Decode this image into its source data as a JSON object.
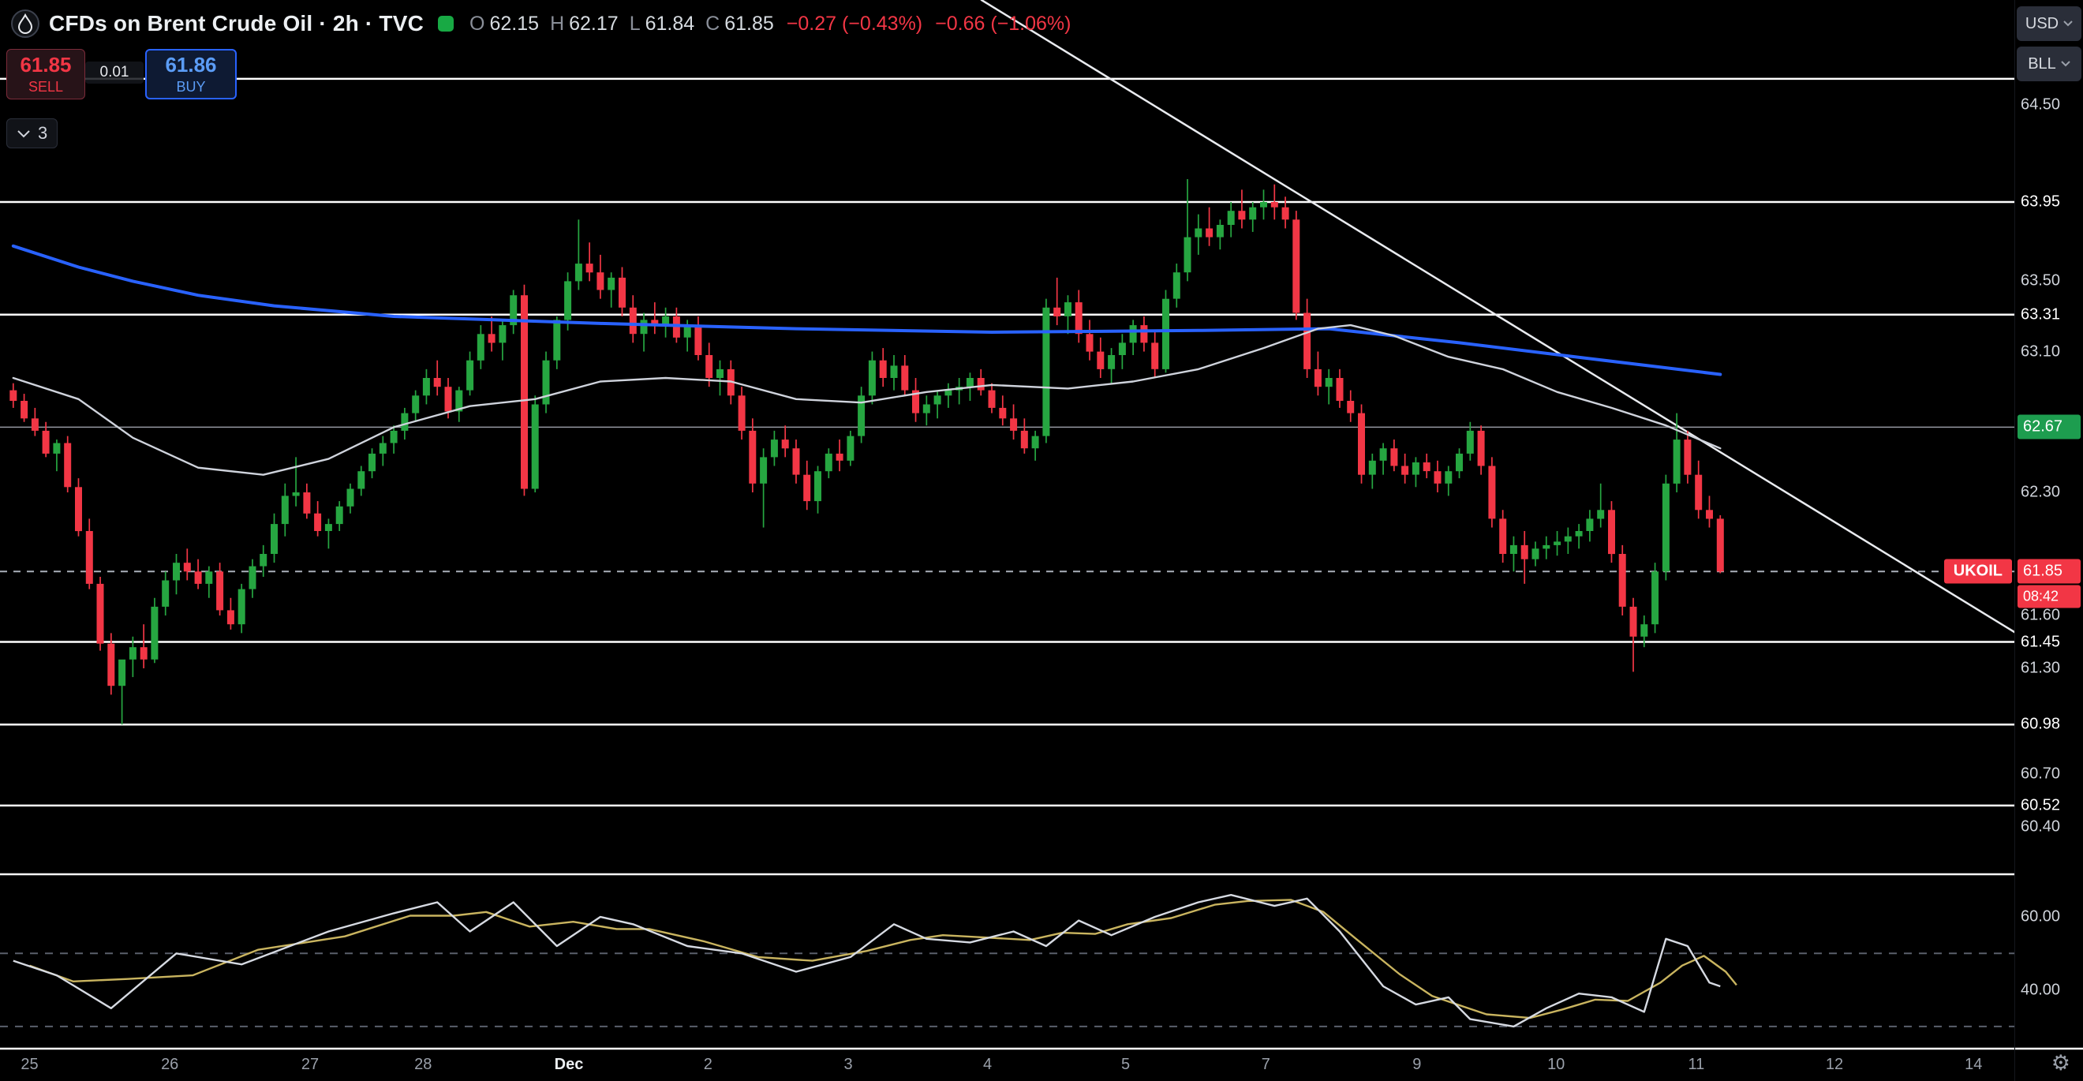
{
  "icons": {
    "gear": "⚙"
  },
  "legend": {
    "title": "CFDs on Brent Crude Oil · 2h · TVC",
    "ohlc": {
      "o_label": "O",
      "o": "62.15",
      "h_label": "H",
      "h": "62.17",
      "l_label": "L",
      "l": "61.84",
      "c_label": "C",
      "c": "61.85",
      "change": "−0.27 (−0.43%)",
      "change2": "−0.66 (−1.06%)"
    }
  },
  "order_panel": {
    "sell_price": "61.85",
    "sell_label": "SELL",
    "spread": "0.01",
    "buy_price": "61.86",
    "buy_label": "BUY",
    "indicator_count": "3"
  },
  "price_axis": {
    "currency": "USD",
    "unit": "BLL",
    "ticks": [
      "64.50",
      "63.50",
      "63.10",
      "62.30",
      "61.60",
      "61.30",
      "60.70",
      "60.40"
    ],
    "line_labels": [
      "63.95",
      "63.31",
      "61.45",
      "60.98",
      "60.52"
    ],
    "alert_label": {
      "text": "62.67"
    },
    "price_tag": {
      "text": "61.85"
    },
    "countdown": "08:42",
    "symbol_tag": "UKOIL",
    "indicator_ticks": [
      "60.00",
      "40.00"
    ]
  },
  "chart_data": {
    "type": "candlestick",
    "title": "CFDs on Brent Crude Oil",
    "symbol": "UKOIL",
    "exchange": "TVC",
    "interval": "2h",
    "current_price": 61.85,
    "colors": {
      "up": "#26a641",
      "down": "#f23645",
      "ma_fast": "#cfd3dc",
      "ma_slow": "#2962ff",
      "signal": "#c9b45f"
    },
    "levels": [
      {
        "price": 64.65,
        "color": "#ffffff",
        "w": 2.5
      },
      {
        "price": 63.95,
        "color": "#ffffff",
        "w": 2.5
      },
      {
        "price": 63.31,
        "color": "#ffffff",
        "w": 2.5
      },
      {
        "price": 62.67,
        "color": "#9598a1",
        "w": 1.5
      },
      {
        "price": 61.45,
        "color": "#ffffff",
        "w": 2.5
      },
      {
        "price": 60.98,
        "color": "#ffffff",
        "w": 2.5
      },
      {
        "price": 60.52,
        "color": "#ffffff",
        "w": 2.5
      }
    ],
    "trendline": {
      "i1": 89,
      "p1": 65.1,
      "i2": 185,
      "p2": 61.47
    },
    "candles": [
      [
        62.88,
        62.92,
        62.78,
        62.82
      ],
      [
        62.82,
        62.86,
        62.7,
        62.72
      ],
      [
        62.72,
        62.78,
        62.62,
        62.65
      ],
      [
        62.65,
        62.7,
        62.5,
        62.52
      ],
      [
        62.52,
        62.6,
        62.42,
        62.58
      ],
      [
        62.58,
        62.62,
        62.3,
        62.33
      ],
      [
        62.33,
        62.38,
        62.05,
        62.08
      ],
      [
        62.08,
        62.15,
        61.75,
        61.78
      ],
      [
        61.78,
        61.82,
        61.4,
        61.44
      ],
      [
        61.44,
        61.5,
        61.15,
        61.2
      ],
      [
        61.2,
        61.28,
        60.98,
        61.35
      ],
      [
        61.35,
        61.48,
        61.25,
        61.42
      ],
      [
        61.42,
        61.55,
        61.3,
        61.35
      ],
      [
        61.35,
        61.7,
        61.33,
        61.65
      ],
      [
        61.65,
        61.85,
        61.6,
        61.8
      ],
      [
        61.8,
        61.95,
        61.72,
        61.9
      ],
      [
        61.9,
        61.98,
        61.8,
        61.85
      ],
      [
        61.85,
        61.92,
        61.75,
        61.78
      ],
      [
        61.78,
        61.88,
        61.7,
        61.85
      ],
      [
        61.85,
        61.9,
        61.6,
        61.63
      ],
      [
        61.63,
        61.7,
        61.52,
        61.55
      ],
      [
        61.55,
        61.78,
        61.5,
        61.75
      ],
      [
        61.75,
        61.92,
        61.7,
        61.88
      ],
      [
        61.88,
        62.0,
        61.82,
        61.95
      ],
      [
        61.95,
        62.18,
        61.9,
        62.12
      ],
      [
        62.12,
        62.35,
        62.05,
        62.28
      ],
      [
        62.28,
        62.5,
        62.22,
        62.3
      ],
      [
        62.3,
        62.35,
        62.15,
        62.18
      ],
      [
        62.18,
        62.25,
        62.05,
        62.08
      ],
      [
        62.08,
        62.15,
        61.98,
        62.12
      ],
      [
        62.12,
        62.25,
        62.08,
        62.22
      ],
      [
        62.22,
        62.35,
        62.18,
        62.32
      ],
      [
        62.32,
        62.45,
        62.28,
        62.42
      ],
      [
        62.42,
        62.55,
        62.38,
        62.52
      ],
      [
        62.52,
        62.62,
        62.45,
        62.58
      ],
      [
        62.58,
        62.68,
        62.52,
        62.65
      ],
      [
        62.65,
        62.78,
        62.6,
        62.75
      ],
      [
        62.75,
        62.88,
        62.7,
        62.85
      ],
      [
        62.85,
        63.0,
        62.8,
        62.95
      ],
      [
        62.95,
        63.05,
        62.85,
        62.9
      ],
      [
        62.9,
        62.95,
        62.72,
        62.76
      ],
      [
        62.76,
        62.9,
        62.7,
        62.88
      ],
      [
        62.88,
        63.1,
        62.85,
        63.05
      ],
      [
        63.05,
        63.25,
        63.0,
        63.2
      ],
      [
        63.2,
        63.3,
        63.1,
        63.15
      ],
      [
        63.15,
        63.28,
        63.05,
        63.25
      ],
      [
        63.25,
        63.45,
        63.2,
        63.42
      ],
      [
        63.42,
        63.48,
        62.28,
        62.32
      ],
      [
        62.32,
        62.85,
        62.3,
        62.8
      ],
      [
        62.8,
        63.1,
        62.75,
        63.05
      ],
      [
        63.05,
        63.3,
        63.0,
        63.28
      ],
      [
        63.28,
        63.55,
        63.22,
        63.5
      ],
      [
        63.5,
        63.85,
        63.45,
        63.6
      ],
      [
        63.6,
        63.72,
        63.5,
        63.55
      ],
      [
        63.55,
        63.65,
        63.4,
        63.45
      ],
      [
        63.45,
        63.55,
        63.35,
        63.52
      ],
      [
        63.52,
        63.58,
        63.3,
        63.35
      ],
      [
        63.35,
        63.42,
        63.15,
        63.2
      ],
      [
        63.2,
        63.32,
        63.1,
        63.28
      ],
      [
        63.28,
        63.38,
        63.2,
        63.25
      ],
      [
        63.25,
        63.35,
        63.18,
        63.3
      ],
      [
        63.3,
        63.35,
        63.15,
        63.18
      ],
      [
        63.18,
        63.28,
        63.1,
        63.25
      ],
      [
        63.25,
        63.3,
        63.05,
        63.08
      ],
      [
        63.08,
        63.15,
        62.9,
        62.95
      ],
      [
        62.95,
        63.05,
        62.85,
        63.0
      ],
      [
        63.0,
        63.05,
        62.8,
        62.85
      ],
      [
        62.85,
        62.9,
        62.6,
        62.65
      ],
      [
        62.65,
        62.72,
        62.3,
        62.35
      ],
      [
        62.35,
        62.55,
        62.1,
        62.5
      ],
      [
        62.5,
        62.65,
        62.45,
        62.6
      ],
      [
        62.6,
        62.68,
        62.5,
        62.55
      ],
      [
        62.55,
        62.6,
        62.35,
        62.4
      ],
      [
        62.4,
        62.48,
        62.2,
        62.25
      ],
      [
        62.25,
        62.45,
        62.18,
        62.42
      ],
      [
        62.42,
        62.55,
        62.38,
        62.52
      ],
      [
        62.52,
        62.6,
        62.42,
        62.48
      ],
      [
        62.48,
        62.65,
        62.45,
        62.62
      ],
      [
        62.62,
        62.9,
        62.58,
        62.85
      ],
      [
        62.85,
        63.1,
        62.8,
        63.05
      ],
      [
        63.05,
        63.12,
        62.9,
        62.95
      ],
      [
        62.95,
        63.08,
        62.88,
        63.02
      ],
      [
        63.02,
        63.08,
        62.85,
        62.88
      ],
      [
        62.88,
        62.95,
        62.7,
        62.75
      ],
      [
        62.75,
        62.85,
        62.68,
        62.8
      ],
      [
        62.8,
        62.88,
        62.72,
        62.85
      ],
      [
        62.85,
        62.92,
        62.78,
        62.88
      ],
      [
        62.88,
        62.95,
        62.8,
        62.9
      ],
      [
        62.9,
        62.98,
        62.82,
        62.95
      ],
      [
        62.95,
        63.0,
        62.85,
        62.88
      ],
      [
        62.88,
        62.92,
        62.75,
        62.78
      ],
      [
        62.78,
        62.85,
        62.68,
        62.72
      ],
      [
        62.72,
        62.8,
        62.6,
        62.65
      ],
      [
        62.65,
        62.72,
        62.52,
        62.55
      ],
      [
        62.55,
        62.65,
        62.48,
        62.62
      ],
      [
        62.62,
        63.4,
        62.58,
        63.35
      ],
      [
        63.35,
        63.52,
        63.25,
        63.3
      ],
      [
        63.3,
        63.42,
        63.2,
        63.38
      ],
      [
        63.38,
        63.45,
        63.15,
        63.2
      ],
      [
        63.2,
        63.28,
        63.05,
        63.1
      ],
      [
        63.1,
        63.18,
        62.95,
        63.0
      ],
      [
        63.0,
        63.12,
        62.92,
        63.08
      ],
      [
        63.08,
        63.2,
        63.0,
        63.15
      ],
      [
        63.15,
        63.28,
        63.08,
        63.25
      ],
      [
        63.25,
        63.3,
        63.1,
        63.15
      ],
      [
        63.15,
        63.22,
        62.95,
        63.0
      ],
      [
        63.0,
        63.45,
        62.98,
        63.4
      ],
      [
        63.4,
        63.6,
        63.35,
        63.55
      ],
      [
        63.55,
        64.08,
        63.5,
        63.75
      ],
      [
        63.75,
        63.88,
        63.65,
        63.8
      ],
      [
        63.8,
        63.92,
        63.7,
        63.75
      ],
      [
        63.75,
        63.85,
        63.68,
        63.82
      ],
      [
        63.82,
        63.95,
        63.75,
        63.9
      ],
      [
        63.9,
        64.02,
        63.8,
        63.85
      ],
      [
        63.85,
        63.95,
        63.78,
        63.92
      ],
      [
        63.92,
        64.02,
        63.85,
        63.95
      ],
      [
        63.95,
        64.05,
        63.85,
        63.92
      ],
      [
        63.92,
        63.98,
        63.8,
        63.85
      ],
      [
        63.85,
        63.9,
        63.28,
        63.32
      ],
      [
        63.32,
        63.4,
        62.95,
        63.0
      ],
      [
        63.0,
        63.1,
        62.85,
        62.9
      ],
      [
        62.9,
        63.0,
        62.8,
        62.95
      ],
      [
        62.95,
        63.0,
        62.78,
        62.82
      ],
      [
        62.82,
        62.88,
        62.7,
        62.75
      ],
      [
        62.75,
        62.8,
        62.35,
        62.4
      ],
      [
        62.4,
        62.52,
        62.32,
        62.48
      ],
      [
        62.48,
        62.58,
        62.4,
        62.55
      ],
      [
        62.55,
        62.6,
        62.42,
        62.45
      ],
      [
        62.45,
        62.52,
        62.35,
        62.4
      ],
      [
        62.4,
        62.5,
        62.33,
        62.47
      ],
      [
        62.47,
        62.52,
        62.38,
        62.42
      ],
      [
        62.42,
        62.48,
        62.3,
        62.35
      ],
      [
        62.35,
        62.45,
        62.28,
        62.42
      ],
      [
        62.42,
        62.55,
        62.38,
        62.52
      ],
      [
        62.52,
        62.7,
        62.48,
        62.65
      ],
      [
        62.65,
        62.68,
        62.4,
        62.45
      ],
      [
        62.45,
        62.5,
        62.1,
        62.15
      ],
      [
        62.15,
        62.2,
        61.9,
        61.95
      ],
      [
        61.95,
        62.05,
        61.85,
        62.0
      ],
      [
        62.0,
        62.08,
        61.78,
        61.92
      ],
      [
        61.92,
        62.02,
        61.88,
        61.98
      ],
      [
        61.98,
        62.05,
        61.92,
        62.0
      ],
      [
        62.0,
        62.08,
        61.94,
        62.02
      ],
      [
        62.02,
        62.1,
        61.95,
        62.05
      ],
      [
        62.05,
        62.12,
        61.98,
        62.08
      ],
      [
        62.08,
        62.2,
        62.02,
        62.15
      ],
      [
        62.15,
        62.35,
        62.1,
        62.2
      ],
      [
        62.2,
        62.25,
        61.9,
        61.95
      ],
      [
        61.95,
        62.0,
        61.6,
        61.65
      ],
      [
        61.65,
        61.7,
        61.28,
        61.48
      ],
      [
        61.48,
        61.6,
        61.42,
        61.55
      ],
      [
        61.55,
        61.9,
        61.5,
        61.85
      ],
      [
        61.85,
        62.4,
        61.8,
        62.35
      ],
      [
        62.35,
        62.75,
        62.3,
        62.6
      ],
      [
        62.6,
        62.65,
        62.35,
        62.4
      ],
      [
        62.4,
        62.48,
        62.15,
        62.2
      ],
      [
        62.2,
        62.28,
        62.1,
        62.15
      ],
      [
        62.15,
        62.17,
        61.84,
        61.85
      ]
    ],
    "ma_slow_points": [
      [
        0,
        63.7
      ],
      [
        6,
        63.58
      ],
      [
        11,
        63.5
      ],
      [
        17,
        63.42
      ],
      [
        24,
        63.36
      ],
      [
        35,
        63.3
      ],
      [
        54,
        63.26
      ],
      [
        72,
        63.23
      ],
      [
        90,
        63.21
      ],
      [
        109,
        63.22
      ],
      [
        121,
        63.23
      ],
      [
        133,
        63.15
      ],
      [
        145,
        63.06
      ],
      [
        157,
        62.97
      ]
    ],
    "ma_fast_points": [
      [
        0,
        62.95
      ],
      [
        6,
        62.83
      ],
      [
        11,
        62.61
      ],
      [
        17,
        62.44
      ],
      [
        23,
        62.4
      ],
      [
        29,
        62.49
      ],
      [
        35,
        62.67
      ],
      [
        42,
        62.79
      ],
      [
        48,
        62.83
      ],
      [
        54,
        62.93
      ],
      [
        60,
        62.95
      ],
      [
        66,
        62.93
      ],
      [
        72,
        62.83
      ],
      [
        78,
        62.81
      ],
      [
        84,
        62.87
      ],
      [
        90,
        62.91
      ],
      [
        97,
        62.89
      ],
      [
        103,
        62.93
      ],
      [
        109,
        63.0
      ],
      [
        115,
        63.12
      ],
      [
        120,
        63.23
      ],
      [
        123,
        63.25
      ],
      [
        127,
        63.19
      ],
      [
        132,
        63.07
      ],
      [
        137,
        63.0
      ],
      [
        142,
        62.87
      ],
      [
        147,
        62.78
      ],
      [
        152,
        62.68
      ],
      [
        157,
        62.55
      ]
    ],
    "indicator": {
      "bands": [
        50,
        30
      ],
      "range": [
        0,
        100
      ],
      "k_points": [
        [
          0,
          48
        ],
        [
          4,
          44
        ],
        [
          9,
          35
        ],
        [
          15,
          50
        ],
        [
          21,
          47
        ],
        [
          29,
          56
        ],
        [
          35,
          61
        ],
        [
          39,
          64
        ],
        [
          42,
          56
        ],
        [
          46,
          64
        ],
        [
          50,
          52
        ],
        [
          54,
          60
        ],
        [
          57,
          58
        ],
        [
          62,
          52
        ],
        [
          67,
          50
        ],
        [
          72,
          45
        ],
        [
          77,
          49
        ],
        [
          81,
          58
        ],
        [
          84,
          54
        ],
        [
          88,
          53
        ],
        [
          92,
          56
        ],
        [
          95,
          52
        ],
        [
          98,
          59
        ],
        [
          101,
          55
        ],
        [
          105,
          60
        ],
        [
          109,
          64
        ],
        [
          112,
          66
        ],
        [
          116,
          63
        ],
        [
          119,
          65
        ],
        [
          122,
          56
        ],
        [
          126,
          41
        ],
        [
          129,
          36
        ],
        [
          132,
          38
        ],
        [
          134,
          32
        ],
        [
          138,
          30
        ],
        [
          141,
          35
        ],
        [
          144,
          39
        ],
        [
          147,
          38
        ],
        [
          150,
          34
        ],
        [
          152,
          54
        ],
        [
          154,
          52
        ],
        [
          156,
          42
        ],
        [
          157,
          41
        ]
      ]
    },
    "time_ticks": [
      {
        "label": "25",
        "i": 1.5
      },
      {
        "label": "26",
        "i": 14.4
      },
      {
        "label": "27",
        "i": 27.3
      },
      {
        "label": "28",
        "i": 37.7
      },
      {
        "label": "Dec",
        "i": 51.1,
        "major": true
      },
      {
        "label": "2",
        "i": 63.9
      },
      {
        "label": "3",
        "i": 76.8
      },
      {
        "label": "4",
        "i": 89.6
      },
      {
        "label": "5",
        "i": 102.3
      },
      {
        "label": "7",
        "i": 115.2
      },
      {
        "label": "9",
        "i": 129.1
      },
      {
        "label": "10",
        "i": 141.9
      },
      {
        "label": "11",
        "i": 154.8
      },
      {
        "label": "12",
        "i": 167.5
      },
      {
        "label": "14",
        "i": 180.3
      }
    ]
  }
}
